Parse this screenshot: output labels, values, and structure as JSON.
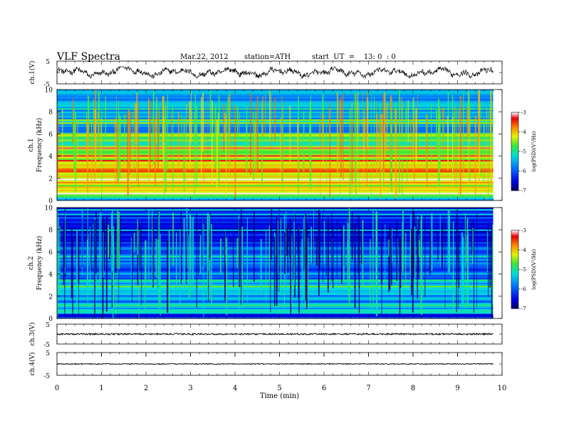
{
  "header": {
    "title": "VLF  Spectra",
    "date": "Mar.22, 2012",
    "station": "station=ATH",
    "start": "start  UT  =    13: 0  : 0"
  },
  "chart_data": [
    {
      "type": "line",
      "panel": "ch1",
      "ylabel": "ch.1(V)",
      "ylim": [
        -5,
        5
      ],
      "y_ticks": [
        "5",
        "-5"
      ],
      "x_unit": "min",
      "xlim": [
        0,
        10
      ],
      "data_extent_min": [
        0,
        9.8
      ],
      "signal_range_V": [
        -2.5,
        2.5
      ],
      "description_values": {
        "mean": 0.0,
        "approx_peak": 2.5
      }
    },
    {
      "type": "heatmap",
      "panel": "ch1-spectrogram",
      "ylabel": "ch.1\nFrequency (kHz)",
      "ylim": [
        0,
        10
      ],
      "y_ticks": [
        0,
        2,
        4,
        6,
        8,
        10
      ],
      "xlim": [
        0,
        10
      ],
      "colorbar": {
        "label": "log(PSD)(V²/Hz)",
        "range": [
          -7,
          -3
        ],
        "ticks": [
          "-3",
          "-4",
          "-5",
          "-6",
          "-7"
        ]
      },
      "band_levels": [
        {
          "f": [
            0,
            0.5
          ],
          "level": -5.2
        },
        {
          "f": [
            0.5,
            1.5
          ],
          "level": -4.2
        },
        {
          "f": [
            1.5,
            3.5
          ],
          "level": -3.9
        },
        {
          "f": [
            3.5,
            5.0
          ],
          "level": -4.3
        },
        {
          "f": [
            5.0,
            6.0
          ],
          "level": -4.8
        },
        {
          "f": [
            6.0,
            10.0
          ],
          "level": -5.5
        }
      ]
    },
    {
      "type": "heatmap",
      "panel": "ch2-spectrogram",
      "ylabel": "ch.2\nFrequency (kHz)",
      "ylim": [
        0,
        10
      ],
      "y_ticks": [
        0,
        2,
        4,
        6,
        8,
        10
      ],
      "xlim": [
        0,
        10
      ],
      "colorbar": {
        "label": "log(PSD)(V²/Hz)",
        "range": [
          -7,
          -3
        ],
        "ticks": [
          "-3",
          "-4",
          "-5",
          "-6",
          "-7"
        ]
      },
      "band_levels": [
        {
          "f": [
            0,
            0.5
          ],
          "level": -6.3
        },
        {
          "f": [
            0.5,
            1.5
          ],
          "level": -5.3
        },
        {
          "f": [
            1.5,
            3.5
          ],
          "level": -5.6
        },
        {
          "f": [
            3.5,
            5.0
          ],
          "level": -6.0
        },
        {
          "f": [
            5.0,
            7.0
          ],
          "level": -5.9
        },
        {
          "f": [
            7.0,
            10.0
          ],
          "level": -6.3
        }
      ]
    },
    {
      "type": "line",
      "panel": "ch3",
      "ylabel": "ch.3(V)",
      "ylim": [
        -5,
        5
      ],
      "y_ticks": [
        "5",
        "-5"
      ],
      "xlim": [
        0,
        10
      ],
      "signal_range_V": [
        -0.4,
        0.4
      ]
    },
    {
      "type": "line",
      "panel": "ch4",
      "ylabel": "ch.4(V)",
      "ylim": [
        -5,
        5
      ],
      "y_ticks": [
        "5",
        "-5"
      ],
      "xlim": [
        0,
        10
      ],
      "signal_range_V": [
        -0.2,
        0.2
      ]
    }
  ],
  "x_axis": {
    "label": "Time  (min)",
    "ticks": [
      "0",
      "1",
      "2",
      "3",
      "4",
      "5",
      "6",
      "7",
      "8",
      "9",
      "10"
    ]
  }
}
